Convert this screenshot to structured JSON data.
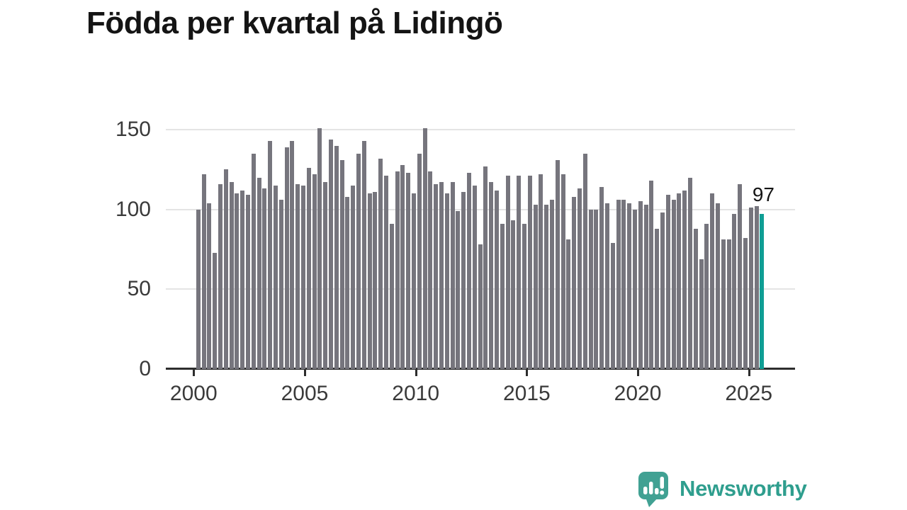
{
  "title": "Födda per kvartal på Lidingö",
  "chart_data": {
    "type": "bar",
    "title": "Födda per kvartal på Lidingö",
    "x_unit": "quarter",
    "start_period": "2000 Q1",
    "end_period": "2025 Q3",
    "values": [
      100,
      122,
      104,
      73,
      116,
      125,
      117,
      110,
      112,
      109,
      135,
      120,
      113,
      143,
      115,
      106,
      139,
      143,
      116,
      115,
      126,
      122,
      151,
      117,
      144,
      140,
      131,
      108,
      115,
      135,
      143,
      110,
      111,
      132,
      121,
      91,
      124,
      128,
      123,
      110,
      135,
      151,
      124,
      116,
      117,
      110,
      117,
      99,
      111,
      123,
      115,
      78,
      127,
      117,
      112,
      91,
      121,
      93,
      121,
      91,
      121,
      103,
      122,
      103,
      106,
      131,
      122,
      81,
      108,
      113,
      135,
      100,
      100,
      114,
      104,
      79,
      106,
      106,
      104,
      100,
      105,
      103,
      118,
      88,
      98,
      109,
      106,
      110,
      112,
      120,
      88,
      69,
      91,
      110,
      104,
      81,
      81,
      97,
      116,
      82,
      101,
      102,
      97
    ],
    "x_tick_years": [
      2000,
      2005,
      2010,
      2015,
      2020,
      2025
    ],
    "y_ticks": [
      0,
      50,
      100,
      150
    ],
    "ylim": [
      0,
      150
    ],
    "grid": true,
    "legend": "none",
    "bar_color": "#76757d",
    "highlight_color": "#0f9e94",
    "highlight_last_bar": true,
    "highlight_value_label": "97"
  },
  "branding": {
    "logo_text": "Newsworthy",
    "logo_color": "#2f9e8e",
    "logo_icon": "speech-bubble-bar-chart-icon"
  }
}
